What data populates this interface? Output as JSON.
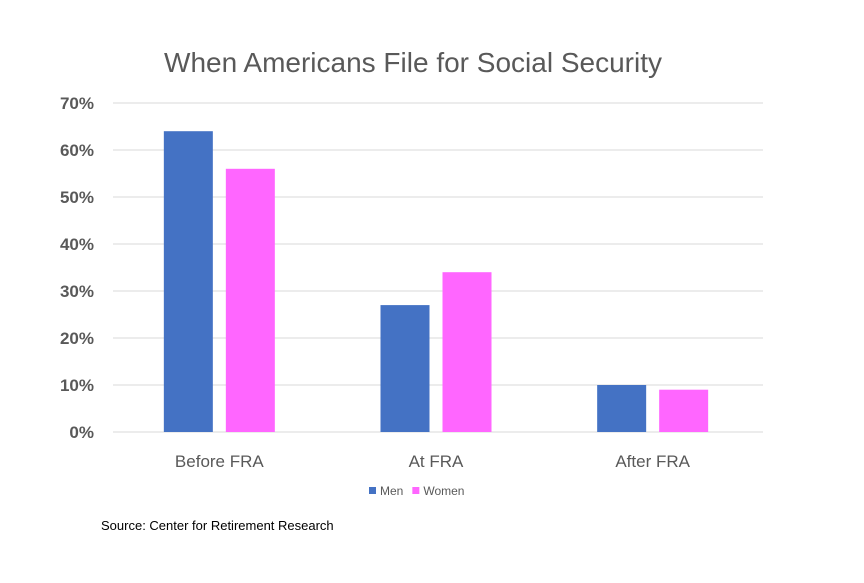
{
  "chart_data": {
    "type": "bar",
    "title": "When Americans File for Social Security",
    "categories": [
      "Before FRA",
      "At FRA",
      "After FRA"
    ],
    "series": [
      {
        "name": "Men",
        "values": [
          64,
          27,
          10
        ],
        "color": "#4472c4"
      },
      {
        "name": "Women",
        "values": [
          56,
          34,
          9
        ],
        "color": "#ff66ff"
      }
    ],
    "ylim": [
      0,
      70
    ],
    "yticks": [
      0,
      10,
      20,
      30,
      40,
      50,
      60,
      70
    ],
    "ytick_labels": [
      "0%",
      "10%",
      "20%",
      "30%",
      "40%",
      "50%",
      "60%",
      "70%"
    ],
    "grid": true,
    "legend_position": "bottom"
  },
  "source_text": "Source: Center for Retirement Research"
}
